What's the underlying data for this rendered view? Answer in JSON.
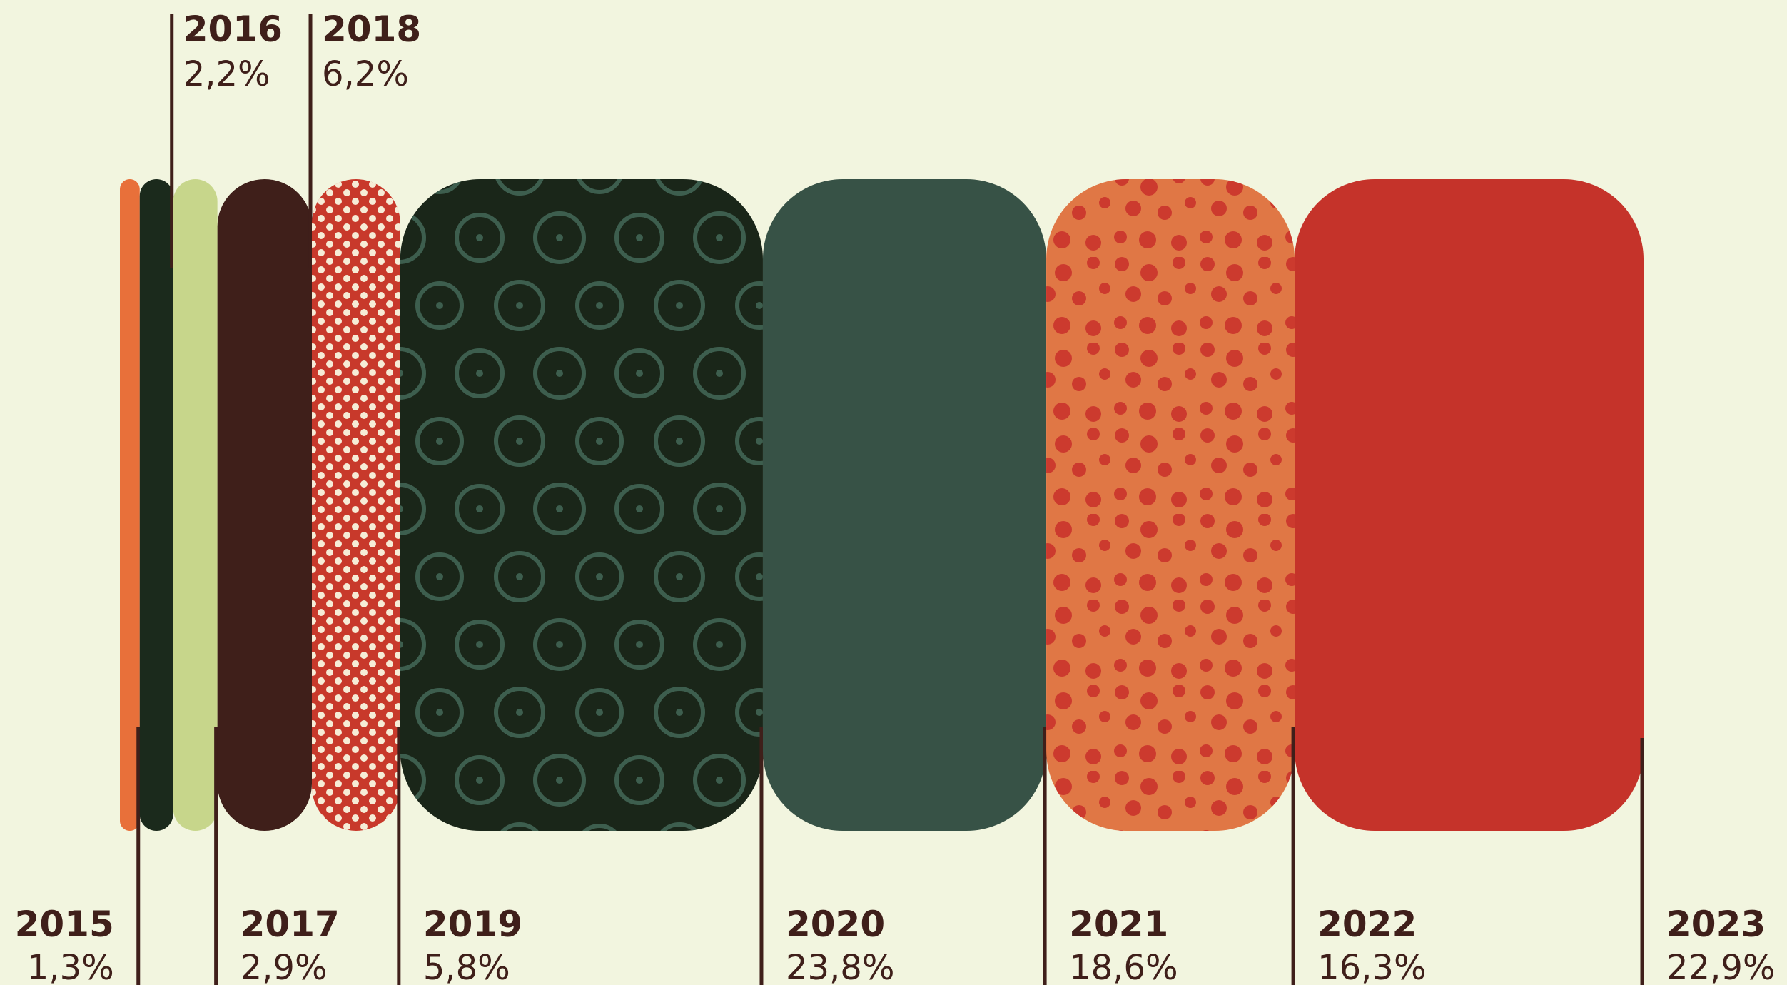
{
  "chart_data": {
    "type": "marimekko",
    "categories": [
      "2015",
      "2016",
      "2017",
      "2018",
      "2019",
      "2020",
      "2021",
      "2022",
      "2023"
    ],
    "values": [
      1.3,
      2.2,
      2.9,
      6.2,
      5.8,
      23.8,
      18.6,
      16.3,
      22.9
    ],
    "value_labels": [
      "1,3%",
      "2,2%",
      "2,9%",
      "6,2%",
      "5,8%",
      "23,8%",
      "18,6%",
      "16,3%",
      "22,9%"
    ],
    "colors": [
      "#e8703a",
      "#1b2a1c",
      "#c7d68b",
      "#3f1f1a",
      "#c8392b",
      "#1a2619",
      "#375246",
      "#e07745",
      "#c5332a"
    ]
  }
}
